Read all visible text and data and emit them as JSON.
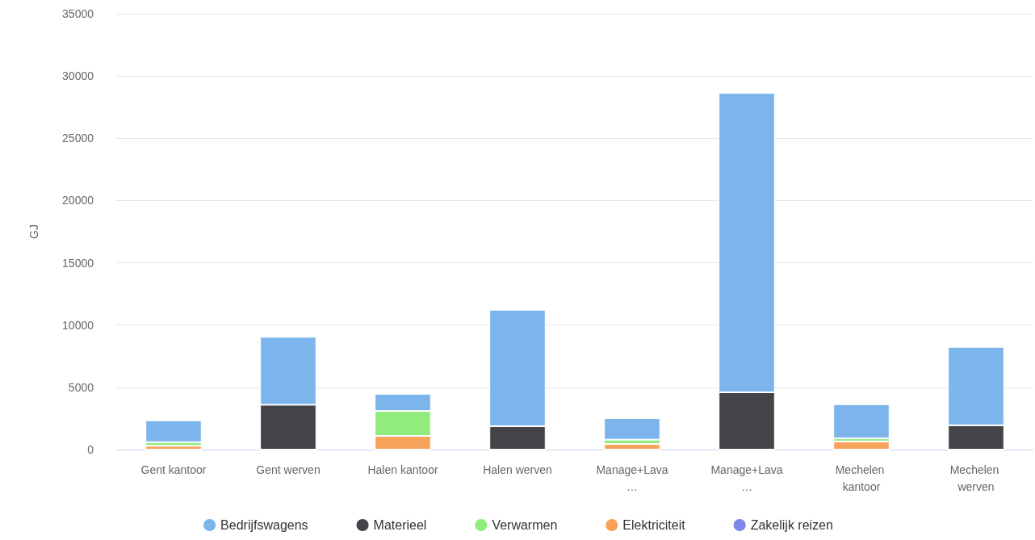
{
  "chart_data": {
    "type": "bar",
    "stacked": true,
    "ylabel": "GJ",
    "categories": [
      "Gent kantoor",
      "Gent werven",
      "Halen kantoor",
      "Halen werven",
      "Manage+Lava…",
      "Manage+Lava…",
      "Mechelen kantoor",
      "Mechelen werven"
    ],
    "series": [
      {
        "name": "Zakelijk reizen",
        "color": "#8085e9",
        "values": [
          0,
          0,
          0,
          0,
          0,
          0,
          0,
          0
        ]
      },
      {
        "name": "Elektriciteit",
        "color": "#f7a35c",
        "values": [
          300,
          0,
          1100,
          0,
          450,
          0,
          650,
          0
        ]
      },
      {
        "name": "Verwarmen",
        "color": "#90ed7d",
        "values": [
          300,
          0,
          2000,
          0,
          350,
          0,
          250,
          0
        ]
      },
      {
        "name": "Materieel",
        "color": "#434348",
        "values": [
          0,
          3600,
          0,
          1880,
          0,
          4600,
          0,
          1950
        ]
      },
      {
        "name": "Bedrijfswagens",
        "color": "#7cb5ec",
        "values": [
          1750,
          5450,
          1380,
          9350,
          1730,
          24040,
          2740,
          6300
        ]
      }
    ],
    "ylim": [
      0,
      35000
    ],
    "yticks": [
      0,
      5000,
      10000,
      15000,
      20000,
      25000,
      30000,
      35000
    ],
    "grid": "y",
    "legend": "bottom"
  }
}
